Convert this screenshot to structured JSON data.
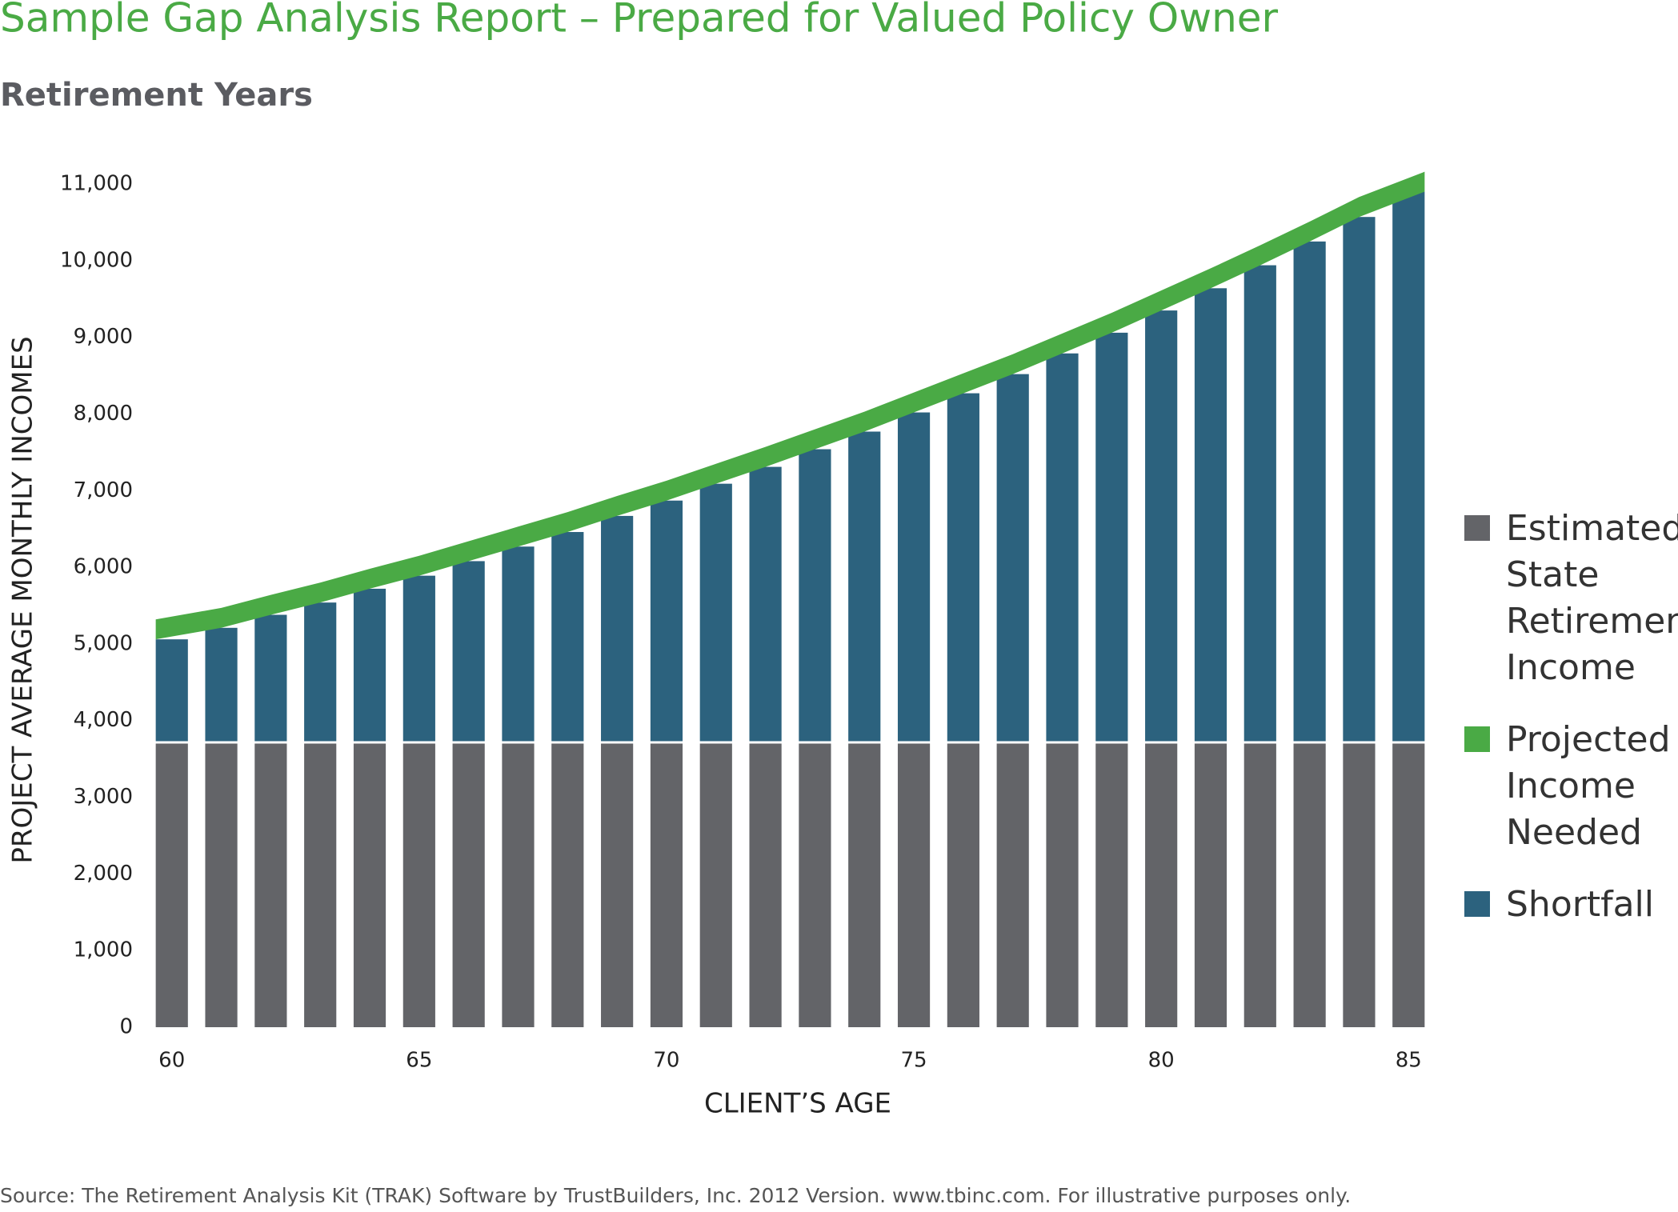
{
  "chart_data": {
    "type": "bar",
    "title": "Sample Gap Analysis Report – Prepared for Valued Policy Owner",
    "subtitle": "Retirement Years",
    "x_label": "CLIENT’S AGE",
    "y_label": "PROJECT AVERAGE MONTHLY INCOMES",
    "source": "Source: The Retirement Analysis Kit (TRAK) Software by TrustBuilders, Inc. 2012 Version. www.tbinc.com. For illustrative purposes only.",
    "x": [
      60,
      61,
      62,
      63,
      64,
      65,
      66,
      67,
      68,
      69,
      70,
      71,
      72,
      73,
      74,
      75,
      76,
      77,
      78,
      79,
      80,
      81,
      82,
      83,
      84,
      85
    ],
    "xlim": [
      59.6,
      85.4
    ],
    "xticks": [
      60,
      65,
      70,
      75,
      80,
      85
    ],
    "ylim": [
      0,
      11000
    ],
    "yticks": [
      0,
      {
        "value": 1000,
        "label": "1,000"
      },
      {
        "value": 2000,
        "label": "2,000"
      },
      {
        "value": 3000,
        "label": "3,000"
      },
      {
        "value": 4000,
        "label": "4,000"
      },
      {
        "value": 5000,
        "label": "5,000"
      },
      {
        "value": 6000,
        "label": "6,000"
      },
      {
        "value": 7000,
        "label": "7,000"
      },
      {
        "value": 8000,
        "label": "8,000"
      },
      {
        "value": 9000,
        "label": "9,000"
      },
      {
        "value": 10000,
        "label": "10,000"
      },
      {
        "value": 11000,
        "label": "11,000"
      }
    ],
    "stacked": true,
    "series": [
      {
        "name": "Estimated State Retirement Income",
        "color": "#636468",
        "kind": "bar",
        "values": [
          3700,
          3700,
          3700,
          3700,
          3700,
          3700,
          3700,
          3700,
          3700,
          3700,
          3700,
          3700,
          3700,
          3700,
          3700,
          3700,
          3700,
          3700,
          3700,
          3700,
          3700,
          3700,
          3700,
          3700,
          3700,
          3700
        ]
      },
      {
        "name": "Projected Income Needed",
        "color": "#4aaa45",
        "kind": "area",
        "values": [
          260,
          260,
          260,
          260,
          260,
          260,
          260,
          260,
          260,
          260,
          260,
          260,
          260,
          260,
          260,
          260,
          260,
          260,
          260,
          260,
          260,
          260,
          260,
          260,
          260,
          260
        ]
      },
      {
        "name": "Shortfall",
        "color": "#2c627e",
        "kind": "bar",
        "values": [
          1360,
          1510,
          1680,
          1840,
          2020,
          2190,
          2380,
          2570,
          2760,
          2970,
          3170,
          3390,
          3610,
          3840,
          4070,
          4320,
          4570,
          4820,
          5090,
          5360,
          5650,
          5940,
          6240,
          6550,
          6870,
          7200
        ]
      }
    ]
  }
}
